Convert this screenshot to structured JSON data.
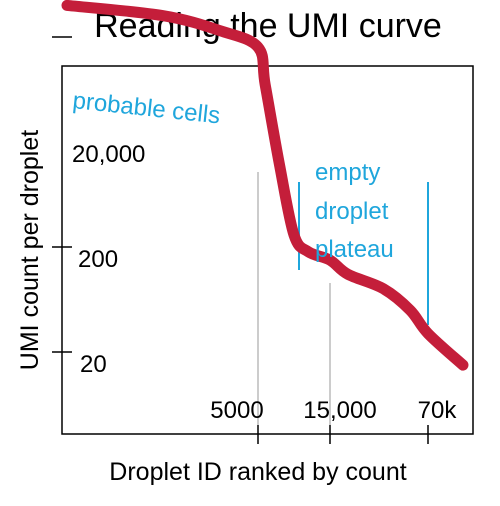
{
  "chart_data": {
    "type": "line",
    "title": "Reading the UMI curve",
    "xlabel": "Droplet ID ranked by count",
    "ylabel": "UMI count per droplet",
    "y_scale": "log",
    "x_ticks": [
      "5000",
      "15,000",
      "70k"
    ],
    "y_ticks": [
      "20,000",
      "200",
      "20"
    ],
    "grid": false,
    "curve_color": "#c41e3a",
    "annotation_color": "#1fa6dc",
    "annotations": {
      "cells": "probable cells",
      "plateau": [
        "empty",
        "droplet",
        "plateau"
      ]
    },
    "series": [
      {
        "x": [
          0,
          2500,
          4000,
          5000,
          6000,
          8000,
          10000,
          12000,
          15000,
          25000,
          45000,
          60000,
          70000,
          80000
        ],
        "y": [
          40000,
          32000,
          23000,
          16000,
          7000,
          1200,
          260,
          180,
          150,
          110,
          80,
          50,
          30,
          15
        ]
      }
    ]
  }
}
